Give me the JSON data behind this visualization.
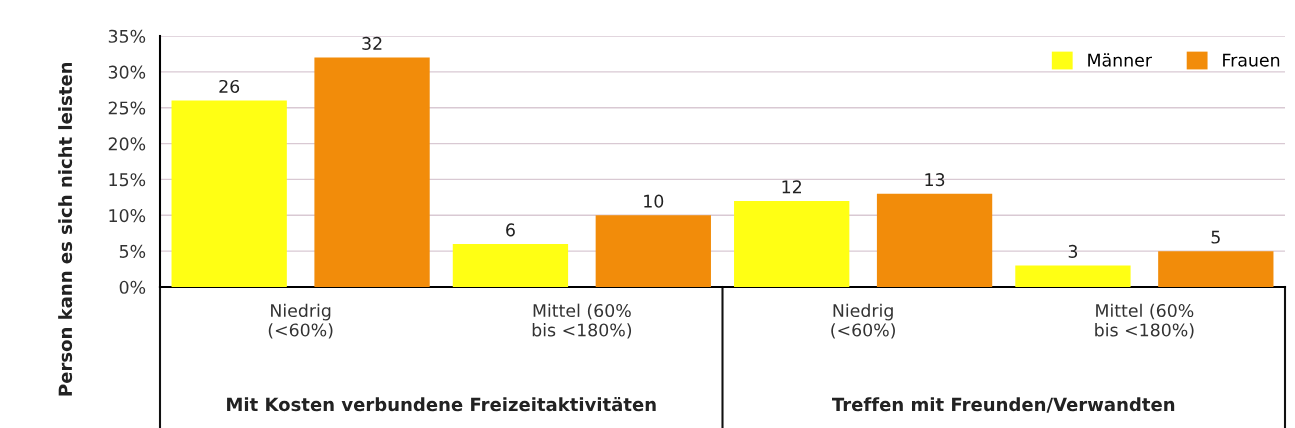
{
  "chart_data": {
    "type": "bar",
    "ylabel": "Person kann es sich nicht leisten",
    "categories": [
      "Niedrig\n(<60%)",
      "Mittel (60%\nbis <180%)",
      "Niedrig\n(<60%)",
      "Mittel (60%\nbis <180%)"
    ],
    "series": [
      {
        "name": "Männer",
        "color": "#ffff14",
        "values": [
          26,
          6,
          12,
          3
        ]
      },
      {
        "name": "Frauen",
        "color": "#f28c0a",
        "values": [
          32,
          10,
          13,
          5
        ]
      }
    ],
    "ylim": [
      0,
      35
    ],
    "yticks": [
      {
        "value": 0,
        "label": "0%"
      },
      {
        "value": 5,
        "label": "5%"
      },
      {
        "value": 10,
        "label": "10%"
      },
      {
        "value": 15,
        "label": "15%"
      },
      {
        "value": 20,
        "label": "20%"
      },
      {
        "value": 25,
        "label": "25%"
      },
      {
        "value": 30,
        "label": "30%"
      },
      {
        "value": 35,
        "label": "35%"
      }
    ],
    "annotations": [
      "Mit Kosten verbundene Freizeitaktivitäten",
      "Treffen mit Freunden/Verwandten"
    ],
    "data_labels": true,
    "grid": "y",
    "legend": "top right"
  }
}
